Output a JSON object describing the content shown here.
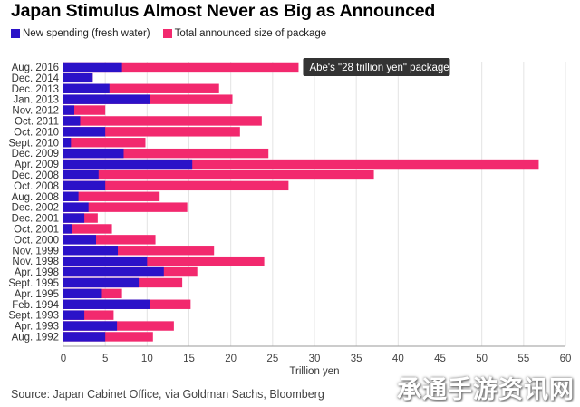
{
  "title": "Japan Stimulus Almost Never as Big as Announced",
  "source": "Source: Japan Cabinet Office, via Goldman Sachs, Bloomberg",
  "watermark": "承通手游资讯网",
  "colors": {
    "new_spending": "#2b12c8",
    "total": "#f2296e",
    "annotation_bg": "#333333",
    "grid": "#e4e4e4"
  },
  "chart_data": {
    "type": "bar",
    "orientation": "horizontal",
    "stacking": "overlay",
    "xlabel": "Trillion yen",
    "ylabel": "",
    "xlim": [
      0,
      60
    ],
    "xticks": [
      0,
      5,
      10,
      15,
      20,
      25,
      30,
      35,
      40,
      45,
      50,
      55,
      60
    ],
    "grid": true,
    "legend_position": "top-left",
    "categories": [
      "Aug. 2016",
      "Dec. 2014",
      "Dec. 2013",
      "Jan. 2013",
      "Nov. 2012",
      "Oct. 2011",
      "Oct. 2010",
      "Sept. 2010",
      "Dec. 2009",
      "Apr. 2009",
      "Dec. 2008",
      "Oct. 2008",
      "Aug. 2008",
      "Dec. 2002",
      "Dec. 2001",
      "Oct. 2001",
      "Oct. 2000",
      "Nov. 1999",
      "Nov. 1998",
      "Apr. 1998",
      "Sept. 1995",
      "Apr. 1995",
      "Feb. 1994",
      "Sept. 1993",
      "Apr. 1993",
      "Aug. 1992"
    ],
    "series": [
      {
        "name": "New spending (fresh water)",
        "values": [
          7.0,
          3.5,
          5.5,
          10.3,
          1.3,
          2.0,
          5.0,
          0.9,
          7.2,
          15.4,
          4.2,
          5.0,
          1.8,
          3.0,
          2.5,
          1.0,
          3.9,
          6.5,
          10.0,
          12.0,
          9.0,
          4.6,
          10.3,
          2.5,
          6.4,
          5.0
        ]
      },
      {
        "name": "Total announced size of package",
        "values": [
          28.1,
          3.5,
          18.6,
          20.2,
          5.0,
          23.7,
          21.1,
          9.8,
          24.5,
          56.8,
          37.1,
          26.9,
          11.5,
          14.8,
          4.1,
          5.8,
          11.0,
          18.0,
          24.0,
          16.0,
          14.2,
          7.0,
          15.2,
          6.0,
          13.2,
          10.7
        ]
      }
    ],
    "annotations": [
      {
        "text": "Abe's \"28 trillion yen\" package",
        "category": "Aug. 2016"
      }
    ]
  }
}
